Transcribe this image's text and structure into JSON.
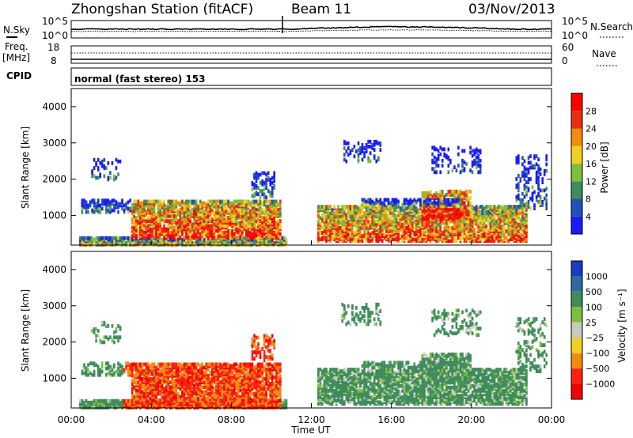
{
  "header": {
    "station": "Zhongshan Station (fitACF)",
    "beam": "Beam 11",
    "date": "03/Nov/2013"
  },
  "strips": {
    "nsky_label": "N.Sky",
    "nsky_ticks": [
      "10^5",
      "10^0"
    ],
    "nsearch_label": "N.Search",
    "nsearch_ticks": [
      "10^5",
      "10^0"
    ],
    "freq_label_1": "Freq.",
    "freq_label_2": "[MHz]",
    "freq_ticks": [
      "18",
      "8"
    ],
    "nave_label": "Nave",
    "nave_ticks": [
      "60",
      "0"
    ],
    "cpid_label": "CPID",
    "cpid_text": "normal (fast stereo) 153"
  },
  "chart_data": [
    {
      "type": "heatmap",
      "name": "power",
      "ylabel": "Slant Range [km]",
      "yticks": [
        "1000",
        "2000",
        "3000",
        "4000"
      ],
      "ylim": [
        180,
        4500
      ],
      "xlim": [
        0,
        24
      ],
      "colorbar": {
        "label": "Power [dB]",
        "ticks": [
          "4",
          "8",
          "12",
          "16",
          "20",
          "24",
          "28"
        ],
        "colors": [
          "#1a1aff",
          "#2150b8",
          "#3e8c5c",
          "#7cbf3c",
          "#f0d020",
          "#f08c10",
          "#e83010",
          "#ff0000"
        ]
      }
    },
    {
      "type": "heatmap",
      "name": "velocity",
      "ylabel": "Slant Range [km]",
      "yticks": [
        "1000",
        "2000",
        "3000",
        "4000"
      ],
      "ylim": [
        180,
        4500
      ],
      "xlim": [
        0,
        24
      ],
      "xlabel": "Time UT",
      "xticks": [
        "00:00",
        "04:00",
        "08:00",
        "12:00",
        "16:00",
        "20:00",
        "00:00"
      ],
      "colorbar": {
        "label": "Velocity [m s⁻¹]",
        "ticks": [
          "1000",
          "500",
          "100",
          "25",
          "−25",
          "−100",
          "−500",
          "−1000"
        ],
        "colors": [
          "#1a3cc0",
          "#2c6aa0",
          "#3e8c5c",
          "#7cbf3c",
          "#c8c8be",
          "#f0d020",
          "#f08c10",
          "#ff2010",
          "#f00000"
        ]
      }
    }
  ]
}
